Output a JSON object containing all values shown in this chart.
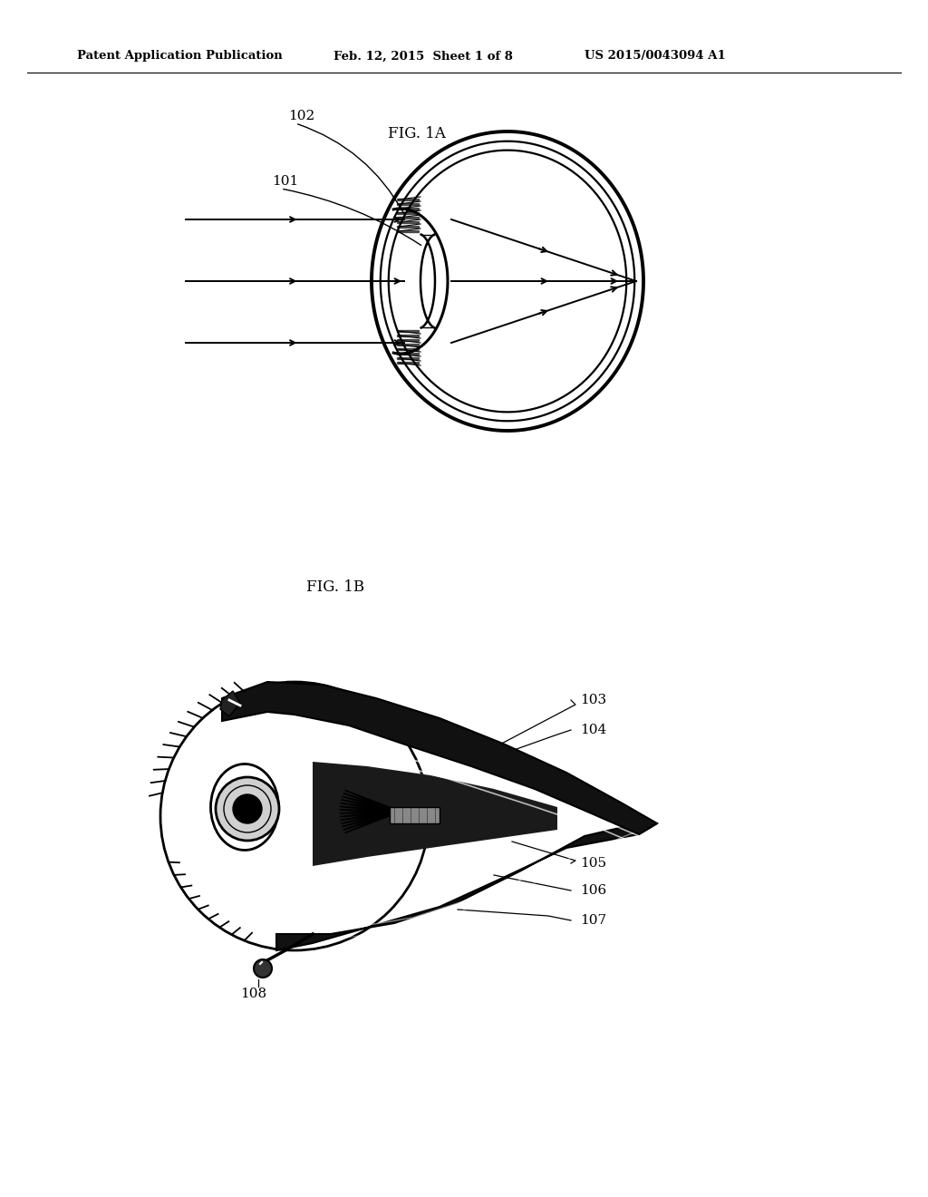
{
  "header_left": "Patent Application Publication",
  "header_mid": "Feb. 12, 2015  Sheet 1 of 8",
  "header_right": "US 2015/0043094 A1",
  "fig1a_label": "FIG. 1A",
  "fig1b_label": "FIG. 1B",
  "label_101": "101",
  "label_102": "102",
  "label_103": "103",
  "label_104": "104",
  "label_105": "105",
  "label_106": "106",
  "label_107": "107",
  "label_108": "108",
  "bg_color": "#ffffff",
  "line_color": "#000000"
}
